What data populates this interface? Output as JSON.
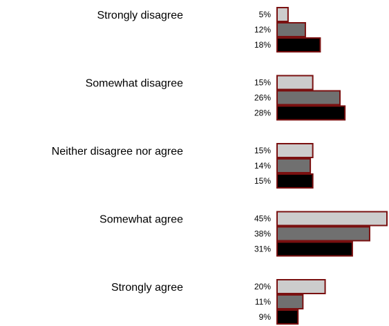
{
  "chart_data": {
    "type": "bar",
    "orientation": "horizontal",
    "title": "",
    "xlabel": "",
    "ylabel": "",
    "categories": [
      "Strongly disagree",
      "Somewhat disagree",
      "Neither disagree nor agree",
      "Somewhat agree",
      "Strongly agree"
    ],
    "series": [
      {
        "values": [
          5,
          15,
          15,
          45,
          20
        ],
        "color": "#cccccc"
      },
      {
        "values": [
          12,
          26,
          14,
          38,
          11
        ],
        "color": "#707070"
      },
      {
        "values": [
          18,
          28,
          15,
          31,
          9
        ],
        "color": "#000000"
      }
    ],
    "value_labels": [
      [
        "5%",
        "15%",
        "15%",
        "45%",
        "20%"
      ],
      [
        "12%",
        "26%",
        "14%",
        "38%",
        "11%"
      ],
      [
        "18%",
        "28%",
        "15%",
        "31%",
        "9%"
      ]
    ],
    "bar_border_color": "#7a1010",
    "value_unit": "%",
    "xlim": [
      0,
      45
    ],
    "grid": false,
    "legend": "none"
  }
}
